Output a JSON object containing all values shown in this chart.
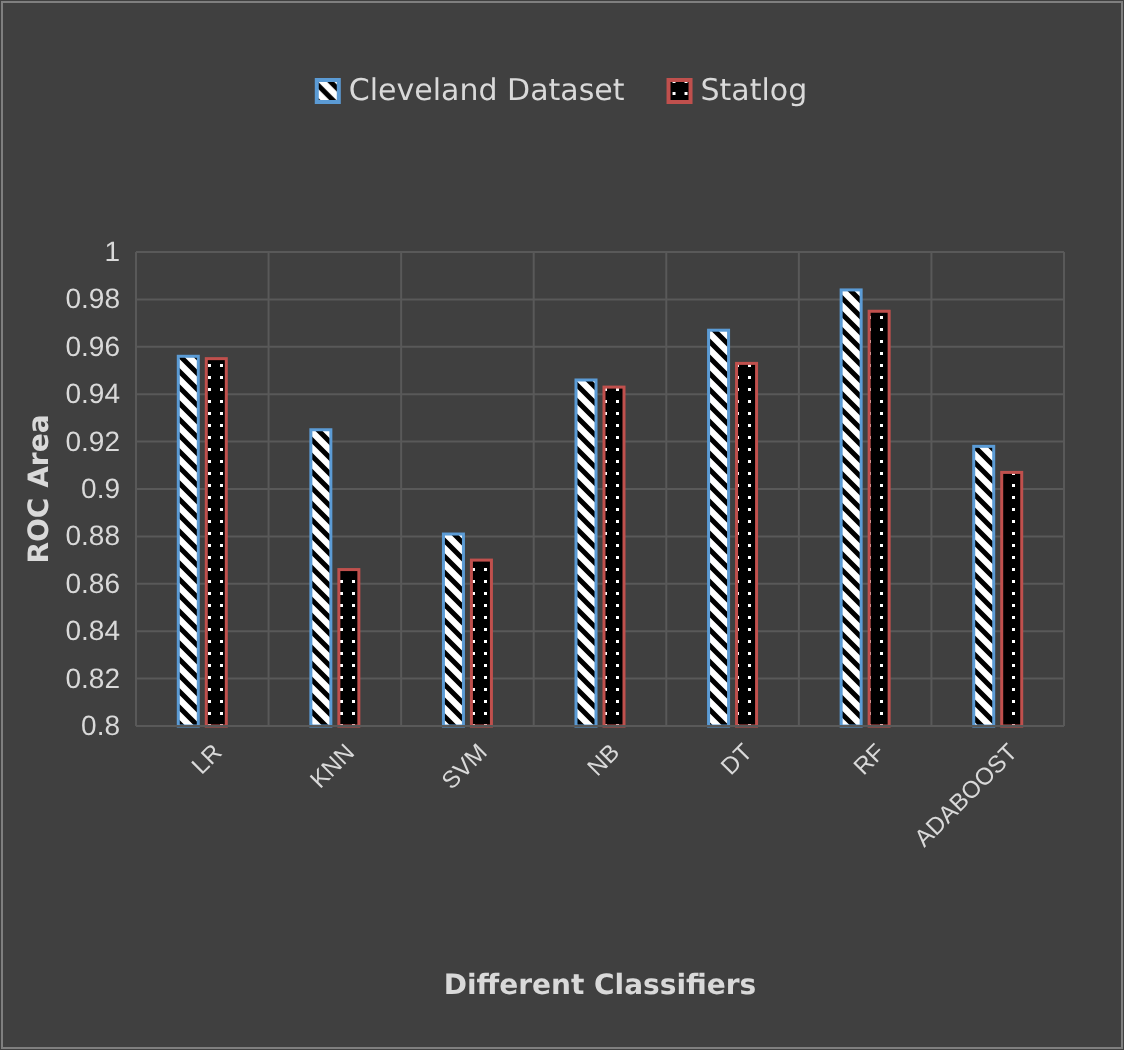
{
  "chart_data": {
    "type": "bar",
    "xlabel": "Different Classifiers",
    "ylabel": "ROC Area",
    "categories": [
      "LR",
      "KNN",
      "SVM",
      "NB",
      "DT",
      "RF",
      "ADABOOST"
    ],
    "series": [
      {
        "name": "Cleveland Dataset",
        "color": "#5b9bd5",
        "values": [
          0.956,
          0.925,
          0.881,
          0.946,
          0.967,
          0.984,
          0.918
        ]
      },
      {
        "name": "Statlog",
        "color": "#c0504d",
        "values": [
          0.955,
          0.866,
          0.87,
          0.943,
          0.953,
          0.975,
          0.907
        ]
      }
    ],
    "ylim": [
      0.8,
      1
    ],
    "yticks": [
      0.8,
      0.82,
      0.84,
      0.86,
      0.88,
      0.9,
      0.92,
      0.94,
      0.96,
      0.98,
      1
    ],
    "grid": true,
    "legend": "top"
  }
}
